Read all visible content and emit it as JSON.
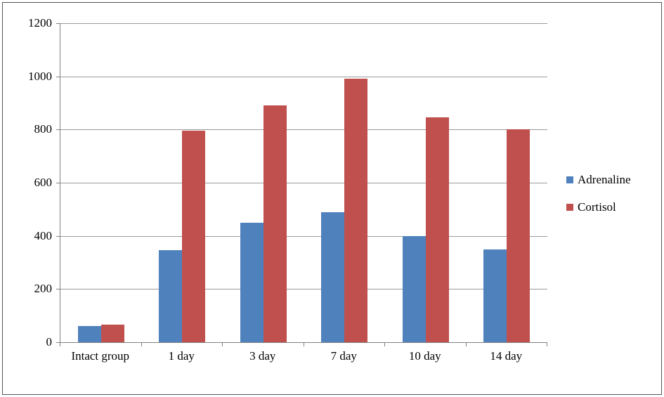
{
  "chart_data": {
    "type": "bar",
    "title": "",
    "categories": [
      "Intact group",
      "1 day",
      "3 day",
      "7 day",
      "10 day",
      "14 day"
    ],
    "series": [
      {
        "name": "Adrenaline",
        "color": "#4f81bd",
        "values": [
          60,
          345,
          450,
          490,
          400,
          350
        ]
      },
      {
        "name": "Cortisol",
        "color": "#c0504d",
        "values": [
          65,
          795,
          890,
          990,
          845,
          800
        ]
      }
    ],
    "ylim": [
      0,
      1200
    ],
    "ytick_step": 200,
    "grid": true,
    "legend_position": "right"
  }
}
